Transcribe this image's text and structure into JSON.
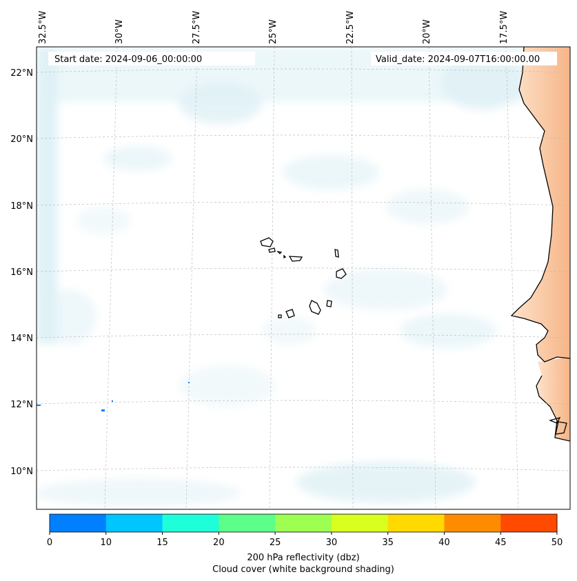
{
  "map": {
    "start_date": "Start date: 2024-09-06_00:00:00",
    "valid_date": "Valid_date: 2024-09-07T16:00:00.00",
    "longitude_labels": [
      "32.5°W",
      "30°W",
      "27.5°W",
      "25°W",
      "22.5°W",
      "20°W",
      "17.5°W"
    ],
    "latitude_labels": [
      "22°N",
      "20°N",
      "18°N",
      "16°N",
      "14°N",
      "12°N",
      "10°N"
    ]
  },
  "colorbar": {
    "ticks": [
      "0",
      "10",
      "15",
      "20",
      "25",
      "30",
      "35",
      "40",
      "45",
      "50"
    ],
    "colors": [
      "#0080ff",
      "#00c5ff",
      "#1effd9",
      "#5cff8a",
      "#9dff52",
      "#d8ff1e",
      "#ffd900",
      "#ff8c00",
      "#ff4a00"
    ],
    "label_line1": "200 hPa reflectivity (dbz)",
    "label_line2": "Cloud cover (white background shading)"
  },
  "colors": {
    "land": "#f9c49c",
    "cloud": "#d4ecf3",
    "coast": "#000000"
  }
}
